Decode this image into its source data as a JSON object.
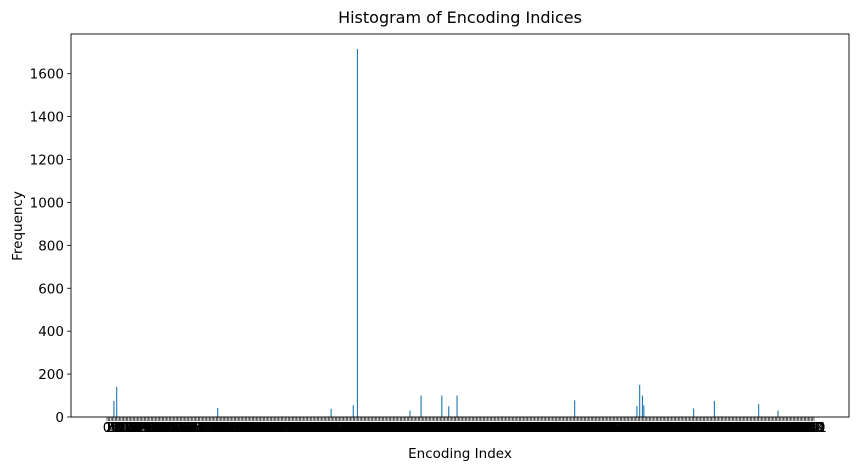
{
  "chart_data": {
    "type": "bar",
    "title": "Histogram of Encoding Indices",
    "xlabel": "Encoding Index",
    "ylabel": "Frequency",
    "ylim": [
      0,
      1785
    ],
    "yticks": [
      0,
      200,
      400,
      600,
      800,
      1000,
      1200,
      1400,
      1600
    ],
    "n_categories": 512,
    "bar_color": "#1f77b4",
    "nonzero_bars": [
      {
        "index": 5,
        "value": 75
      },
      {
        "index": 7,
        "value": 140
      },
      {
        "index": 80,
        "value": 42
      },
      {
        "index": 162,
        "value": 38
      },
      {
        "index": 178,
        "value": 55
      },
      {
        "index": 181,
        "value": 1715
      },
      {
        "index": 219,
        "value": 30
      },
      {
        "index": 227,
        "value": 100
      },
      {
        "index": 242,
        "value": 100
      },
      {
        "index": 247,
        "value": 50
      },
      {
        "index": 253,
        "value": 100
      },
      {
        "index": 338,
        "value": 78
      },
      {
        "index": 383,
        "value": 52
      },
      {
        "index": 385,
        "value": 150
      },
      {
        "index": 387,
        "value": 100
      },
      {
        "index": 388,
        "value": 55
      },
      {
        "index": 424,
        "value": 40
      },
      {
        "index": 439,
        "value": 75
      },
      {
        "index": 471,
        "value": 60
      },
      {
        "index": 485,
        "value": 30
      }
    ]
  }
}
